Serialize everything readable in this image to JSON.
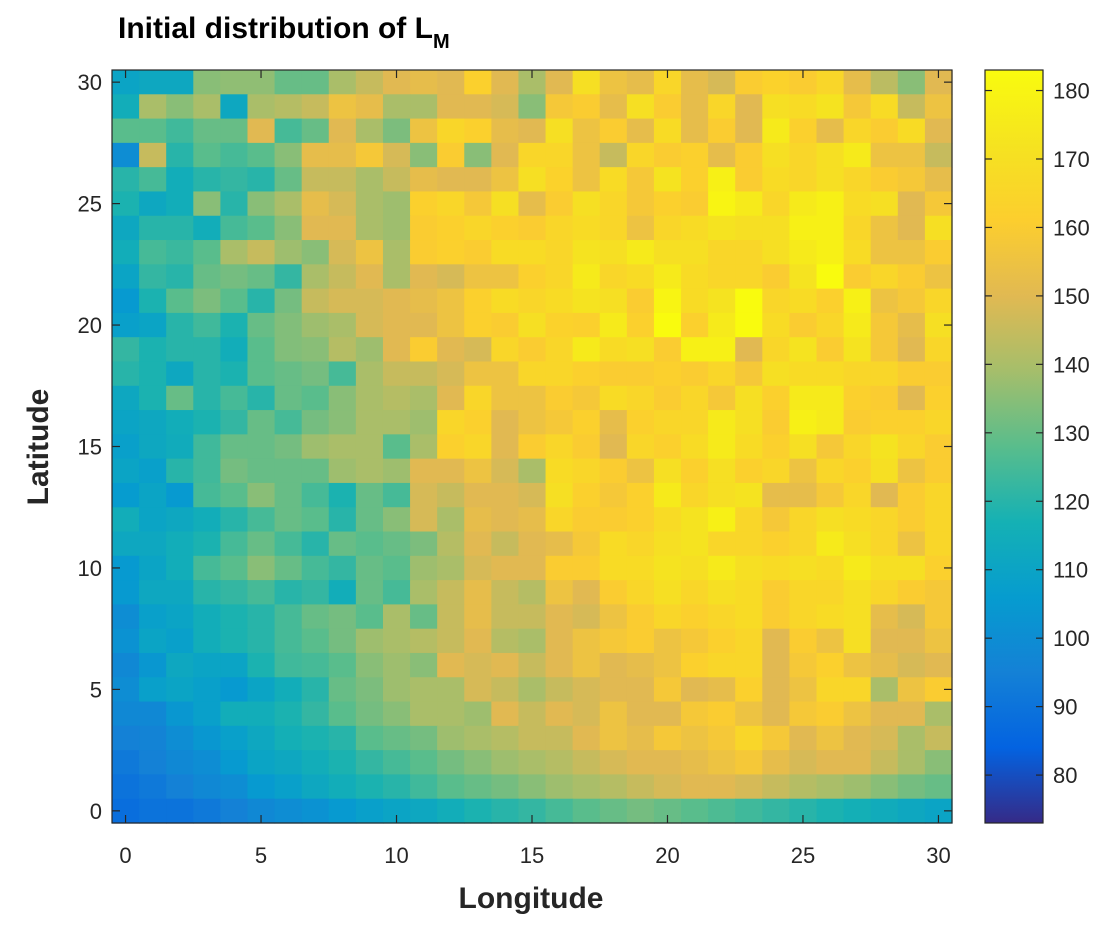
{
  "chart_data": {
    "type": "heatmap",
    "title": "Initial distribution of L",
    "title_subscript": "M",
    "xlabel": "Longitude",
    "ylabel": "Latitude",
    "xlim": [
      -0.5,
      30.5
    ],
    "ylim": [
      -0.5,
      30.5
    ],
    "xticks": [
      0,
      5,
      10,
      15,
      20,
      25,
      30
    ],
    "yticks": [
      0,
      5,
      10,
      15,
      20,
      25,
      30
    ],
    "colorbar": {
      "colormap": "parula",
      "range": [
        73,
        183
      ],
      "ticks": [
        80,
        90,
        100,
        110,
        120,
        130,
        140,
        150,
        160,
        170,
        180
      ]
    },
    "grid_size": [
      31,
      31
    ],
    "z_note_rows_from_top": "rows listed from latitude 30 (top) to latitude 0 (bottom); columns from longitude 0 to 30",
    "z": [
      [
        110,
        112,
        112,
        135,
        136,
        136,
        130,
        130,
        140,
        145,
        150,
        152,
        150,
        162,
        150,
        140,
        150,
        170,
        155,
        152,
        165,
        152,
        148,
        160,
        163,
        160,
        165,
        152,
        143,
        135,
        150
      ],
      [
        115,
        140,
        135,
        140,
        112,
        140,
        142,
        145,
        155,
        152,
        140,
        140,
        150,
        150,
        148,
        135,
        158,
        160,
        152,
        170,
        160,
        152,
        165,
        150,
        170,
        168,
        172,
        158,
        168,
        145,
        155
      ],
      [
        128,
        128,
        124,
        130,
        130,
        150,
        125,
        130,
        150,
        140,
        133,
        155,
        165,
        162,
        152,
        150,
        170,
        155,
        160,
        152,
        168,
        152,
        160,
        150,
        175,
        162,
        152,
        165,
        160,
        168,
        150
      ],
      [
        100,
        145,
        120,
        128,
        125,
        128,
        135,
        152,
        152,
        158,
        148,
        135,
        160,
        135,
        150,
        165,
        165,
        155,
        145,
        165,
        160,
        162,
        152,
        160,
        170,
        165,
        170,
        175,
        155,
        155,
        145
      ],
      [
        120,
        125,
        115,
        120,
        122,
        120,
        130,
        145,
        145,
        140,
        145,
        152,
        150,
        150,
        155,
        170,
        163,
        155,
        168,
        158,
        172,
        162,
        178,
        160,
        168,
        165,
        170,
        165,
        160,
        158,
        152
      ],
      [
        118,
        112,
        115,
        135,
        120,
        135,
        140,
        152,
        148,
        140,
        138,
        162,
        165,
        158,
        170,
        152,
        160,
        170,
        165,
        158,
        162,
        160,
        180,
        175,
        165,
        175,
        178,
        168,
        170,
        150,
        158
      ],
      [
        112,
        120,
        120,
        115,
        125,
        128,
        135,
        150,
        150,
        140,
        138,
        160,
        162,
        165,
        162,
        160,
        165,
        168,
        165,
        155,
        165,
        168,
        172,
        170,
        170,
        178,
        178,
        165,
        155,
        150,
        170
      ],
      [
        115,
        125,
        123,
        128,
        140,
        145,
        138,
        135,
        148,
        155,
        140,
        160,
        162,
        160,
        168,
        168,
        165,
        172,
        170,
        175,
        170,
        170,
        165,
        165,
        170,
        175,
        178,
        168,
        155,
        155,
        160
      ],
      [
        110,
        122,
        120,
        130,
        132,
        130,
        122,
        140,
        145,
        150,
        140,
        150,
        148,
        155,
        155,
        162,
        165,
        175,
        165,
        168,
        175,
        168,
        165,
        165,
        160,
        172,
        183,
        160,
        165,
        160,
        155
      ],
      [
        105,
        118,
        128,
        133,
        128,
        120,
        132,
        145,
        148,
        148,
        150,
        152,
        155,
        162,
        168,
        165,
        168,
        172,
        170,
        160,
        180,
        168,
        172,
        183,
        165,
        168,
        162,
        178,
        155,
        158,
        165
      ],
      [
        108,
        110,
        120,
        124,
        118,
        130,
        134,
        138,
        140,
        148,
        150,
        150,
        155,
        162,
        160,
        170,
        163,
        162,
        175,
        162,
        183,
        162,
        175,
        183,
        168,
        160,
        165,
        175,
        158,
        152,
        170
      ],
      [
        122,
        118,
        120,
        120,
        115,
        128,
        134,
        135,
        142,
        138,
        150,
        160,
        150,
        148,
        165,
        160,
        165,
        175,
        168,
        170,
        160,
        178,
        178,
        150,
        165,
        172,
        160,
        172,
        158,
        150,
        165
      ],
      [
        120,
        118,
        112,
        120,
        118,
        128,
        130,
        132,
        125,
        140,
        145,
        145,
        148,
        155,
        155,
        165,
        165,
        162,
        160,
        160,
        162,
        160,
        165,
        158,
        170,
        168,
        168,
        165,
        165,
        160,
        160
      ],
      [
        112,
        118,
        130,
        120,
        125,
        120,
        130,
        128,
        135,
        140,
        142,
        140,
        150,
        165,
        155,
        155,
        160,
        158,
        168,
        165,
        160,
        165,
        158,
        170,
        162,
        175,
        175,
        162,
        160,
        150,
        162
      ],
      [
        110,
        112,
        115,
        118,
        122,
        130,
        125,
        132,
        135,
        140,
        140,
        138,
        165,
        162,
        150,
        155,
        158,
        162,
        152,
        162,
        165,
        165,
        175,
        170,
        160,
        178,
        175,
        160,
        162,
        162,
        165
      ],
      [
        108,
        112,
        114,
        124,
        130,
        130,
        132,
        138,
        140,
        140,
        128,
        140,
        162,
        165,
        150,
        160,
        165,
        160,
        150,
        165,
        162,
        168,
        175,
        168,
        162,
        170,
        158,
        165,
        172,
        165,
        160
      ],
      [
        110,
        108,
        120,
        124,
        132,
        130,
        130,
        130,
        138,
        140,
        138,
        150,
        150,
        155,
        148,
        140,
        168,
        165,
        160,
        155,
        170,
        162,
        170,
        162,
        165,
        155,
        165,
        162,
        170,
        155,
        160
      ],
      [
        106,
        110,
        105,
        125,
        128,
        135,
        130,
        125,
        118,
        130,
        125,
        148,
        145,
        150,
        150,
        148,
        170,
        162,
        158,
        162,
        175,
        165,
        170,
        172,
        152,
        152,
        158,
        165,
        150,
        160,
        165
      ],
      [
        115,
        110,
        112,
        115,
        120,
        125,
        130,
        128,
        120,
        130,
        135,
        148,
        140,
        152,
        150,
        152,
        165,
        160,
        160,
        162,
        168,
        172,
        178,
        165,
        158,
        165,
        170,
        168,
        165,
        160,
        165
      ],
      [
        112,
        112,
        115,
        118,
        125,
        130,
        125,
        120,
        130,
        128,
        130,
        133,
        142,
        150,
        145,
        150,
        152,
        158,
        168,
        165,
        170,
        172,
        165,
        165,
        162,
        165,
        175,
        170,
        165,
        155,
        165
      ],
      [
        105,
        110,
        115,
        125,
        128,
        135,
        130,
        125,
        122,
        130,
        128,
        138,
        140,
        148,
        150,
        150,
        160,
        160,
        168,
        168,
        172,
        170,
        175,
        170,
        168,
        170,
        168,
        175,
        170,
        170,
        162
      ],
      [
        105,
        112,
        112,
        120,
        122,
        125,
        120,
        122,
        115,
        130,
        125,
        140,
        145,
        152,
        145,
        142,
        155,
        150,
        160,
        165,
        170,
        165,
        170,
        168,
        160,
        165,
        165,
        170,
        165,
        160,
        158
      ],
      [
        100,
        108,
        110,
        115,
        118,
        120,
        125,
        130,
        132,
        128,
        140,
        130,
        145,
        152,
        145,
        145,
        150,
        148,
        155,
        160,
        165,
        162,
        165,
        168,
        160,
        165,
        168,
        170,
        152,
        148,
        158
      ],
      [
        102,
        110,
        108,
        115,
        118,
        120,
        125,
        128,
        132,
        138,
        140,
        142,
        145,
        150,
        142,
        140,
        150,
        155,
        158,
        160,
        155,
        158,
        162,
        165,
        150,
        160,
        155,
        170,
        150,
        150,
        155
      ],
      [
        98,
        104,
        112,
        110,
        110,
        118,
        124,
        125,
        128,
        135,
        138,
        135,
        150,
        148,
        150,
        145,
        150,
        155,
        150,
        152,
        155,
        162,
        165,
        165,
        150,
        158,
        162,
        155,
        152,
        148,
        150
      ],
      [
        100,
        108,
        110,
        108,
        105,
        110,
        115,
        120,
        130,
        133,
        138,
        140,
        140,
        148,
        145,
        140,
        145,
        148,
        150,
        150,
        158,
        150,
        152,
        162,
        150,
        155,
        165,
        165,
        140,
        155,
        160
      ],
      [
        98,
        98,
        104,
        108,
        115,
        115,
        118,
        122,
        128,
        132,
        135,
        140,
        140,
        138,
        150,
        145,
        150,
        148,
        155,
        150,
        150,
        158,
        160,
        155,
        150,
        158,
        160,
        155,
        150,
        150,
        140
      ],
      [
        95,
        96,
        100,
        104,
        108,
        112,
        116,
        118,
        120,
        128,
        130,
        132,
        138,
        140,
        142,
        145,
        145,
        150,
        155,
        152,
        158,
        155,
        158,
        165,
        158,
        150,
        155,
        150,
        148,
        140,
        145
      ],
      [
        92,
        95,
        98,
        100,
        105,
        110,
        112,
        115,
        118,
        122,
        125,
        128,
        132,
        135,
        138,
        140,
        142,
        145,
        148,
        150,
        150,
        152,
        155,
        158,
        152,
        148,
        150,
        150,
        145,
        140,
        135
      ],
      [
        90,
        92,
        95,
        98,
        100,
        105,
        108,
        112,
        115,
        118,
        120,
        124,
        128,
        130,
        132,
        135,
        138,
        140,
        142,
        145,
        148,
        150,
        150,
        148,
        145,
        142,
        140,
        138,
        135,
        132,
        130
      ],
      [
        88,
        90,
        90,
        92,
        95,
        98,
        100,
        102,
        105,
        108,
        110,
        112,
        115,
        118,
        120,
        122,
        125,
        128,
        130,
        132,
        130,
        128,
        126,
        124,
        122,
        120,
        118,
        116,
        114,
        112,
        110
      ]
    ]
  }
}
